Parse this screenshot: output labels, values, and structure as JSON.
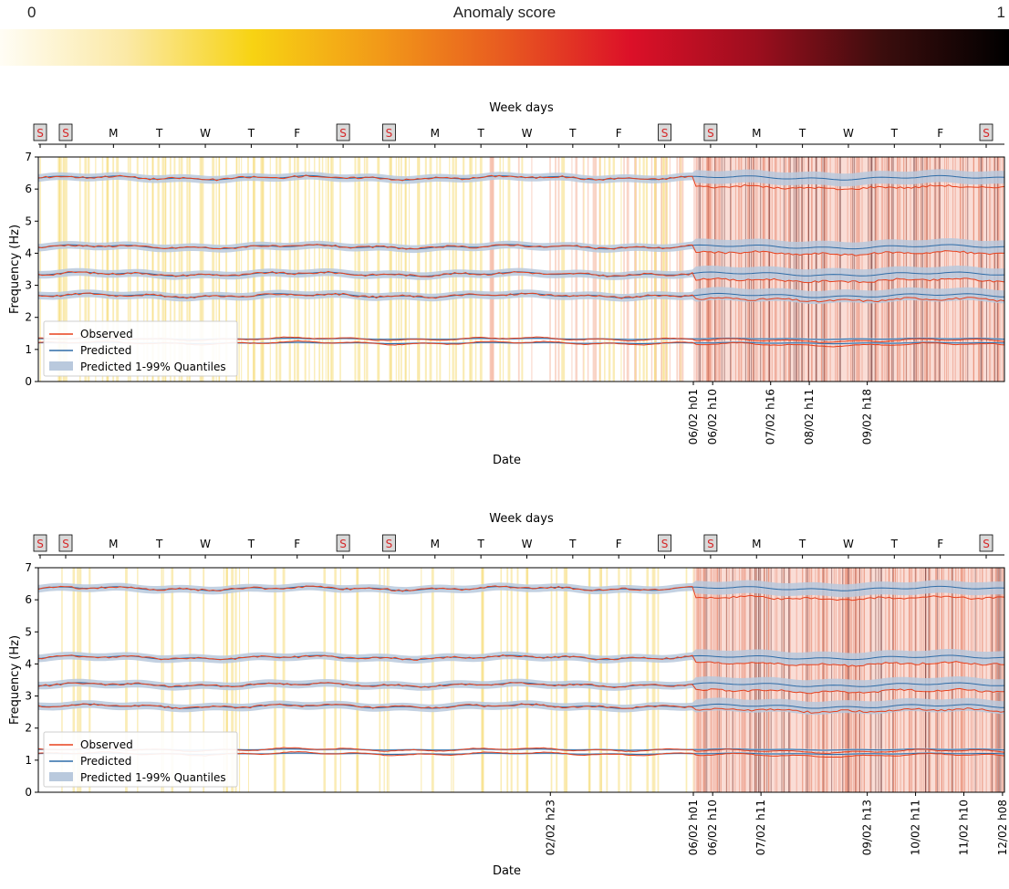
{
  "colorbar": {
    "title": "Anomaly score",
    "min_label": "0",
    "max_label": "1",
    "stops": [
      "#fffdf5",
      "#fbe9a6",
      "#f7d313",
      "#f29a18",
      "#e85a20",
      "#dc1028",
      "#9c0e1e",
      "#3b0d0d",
      "#000000"
    ]
  },
  "colors": {
    "observed": "#e8401c",
    "predicted": "#2f6da8",
    "quantile_band": "#b9c9dd",
    "weekend_box": "#d9d9d9",
    "weekend_text": "#d62728"
  },
  "chart_data": [
    {
      "type": "line",
      "top_axis_label": "Week days",
      "weekdays": [
        "S",
        "S",
        "M",
        "T",
        "W",
        "T",
        "F",
        "S",
        "S",
        "M",
        "T",
        "W",
        "T",
        "F",
        "S",
        "S",
        "M",
        "T",
        "W",
        "T",
        "F",
        "S"
      ],
      "xlabel": "Date",
      "ylabel": "Frequency (Hz)",
      "ylim": [
        0,
        7
      ],
      "yticks": [
        "0",
        "1",
        "2",
        "3",
        "4",
        "5",
        "6",
        "7"
      ],
      "x_tick_labels": [
        "06/02 h01",
        "06/02 h10",
        "07/02 h16",
        "08/02 h11",
        "09/02 h18"
      ],
      "legend": [
        "Observed",
        "Predicted",
        "Predicted 1-99% Quantiles"
      ],
      "legend_position": "lower-left",
      "series": [
        {
          "mode": 1,
          "predicted": 1.2,
          "observed_before": 1.2,
          "observed_after": 1.15
        },
        {
          "mode": 2,
          "predicted": 1.33,
          "observed_before": 1.33,
          "observed_after": 1.28
        },
        {
          "mode": 3,
          "predicted": 2.68,
          "observed_before": 2.68,
          "observed_after": 2.55
        },
        {
          "mode": 4,
          "predicted": 3.35,
          "observed_before": 3.35,
          "observed_after": 3.15
        },
        {
          "mode": 5,
          "predicted": 4.2,
          "observed_before": 4.2,
          "observed_after": 4.0
        },
        {
          "mode": 6,
          "predicted": 6.35,
          "observed_before": 6.35,
          "observed_after": 6.05
        }
      ]
    },
    {
      "type": "line",
      "top_axis_label": "Week days",
      "weekdays": [
        "S",
        "S",
        "M",
        "T",
        "W",
        "T",
        "F",
        "S",
        "S",
        "M",
        "T",
        "W",
        "T",
        "F",
        "S",
        "S",
        "M",
        "T",
        "W",
        "T",
        "F",
        "S"
      ],
      "xlabel": "Date",
      "ylabel": "Frequency (Hz)",
      "ylim": [
        0,
        7
      ],
      "yticks": [
        "0",
        "1",
        "2",
        "3",
        "4",
        "5",
        "6",
        "7"
      ],
      "x_tick_labels": [
        "02/02 h23",
        "06/02 h01",
        "06/02 h10",
        "07/02 h11",
        "09/02 h13",
        "10/02 h11",
        "11/02 h10",
        "12/02 h08"
      ],
      "legend": [
        "Observed",
        "Predicted",
        "Predicted 1-99% Quantiles"
      ],
      "legend_position": "lower-left",
      "series": [
        {
          "mode": 1,
          "predicted": 1.2,
          "observed_before": 1.2,
          "observed_after": 1.15
        },
        {
          "mode": 2,
          "predicted": 1.33,
          "observed_before": 1.33,
          "observed_after": 1.28
        },
        {
          "mode": 3,
          "predicted": 2.68,
          "observed_before": 2.68,
          "observed_after": 2.55
        },
        {
          "mode": 4,
          "predicted": 3.35,
          "observed_before": 3.35,
          "observed_after": 3.15
        },
        {
          "mode": 5,
          "predicted": 4.2,
          "observed_before": 4.2,
          "observed_after": 4.0
        },
        {
          "mode": 6,
          "predicted": 6.35,
          "observed_before": 6.35,
          "observed_after": 6.05
        }
      ]
    }
  ]
}
